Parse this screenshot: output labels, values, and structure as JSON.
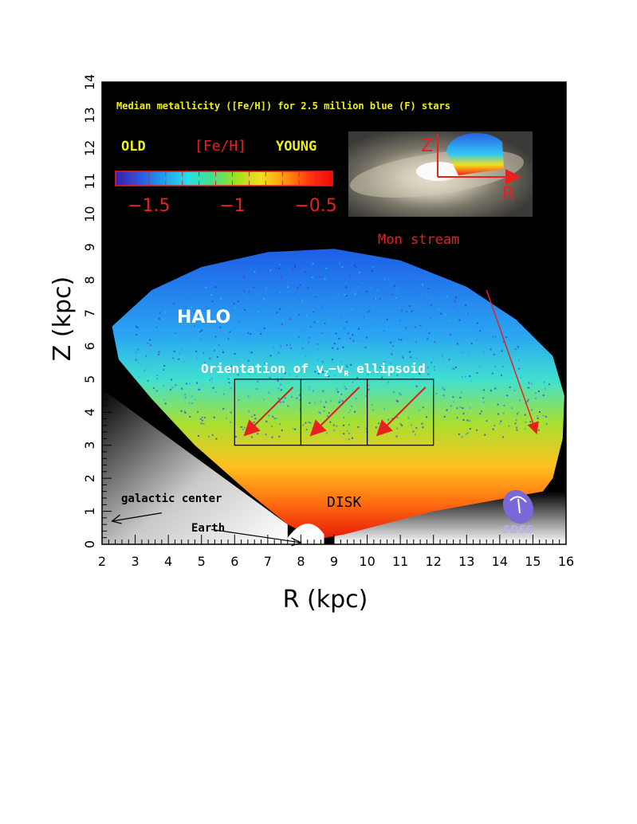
{
  "chart_data": {
    "type": "heatmap",
    "title": "Median metallicity ([Fe/H]) for 2.5 million blue (F) stars",
    "xlabel": "R (kpc)",
    "ylabel": "Z (kpc)",
    "xlim": [
      2,
      16
    ],
    "ylim": [
      0,
      14
    ],
    "x_ticks": [
      "2",
      "3",
      "4",
      "5",
      "6",
      "7",
      "8",
      "9",
      "10",
      "11",
      "12",
      "13",
      "14",
      "15",
      "16"
    ],
    "y_ticks": [
      "0",
      "1",
      "2",
      "3",
      "4",
      "5",
      "6",
      "7",
      "8",
      "9",
      "10",
      "11",
      "12",
      "13",
      "14"
    ],
    "colorbar": {
      "title": "[Fe/H]",
      "left_label": "OLD",
      "right_label": "YOUNG",
      "tick_labels": [
        "−1.5",
        "−1",
        "−0.5"
      ],
      "range": [
        -1.7,
        -0.4
      ],
      "colors": [
        "#3a1fa8",
        "#2a57e0",
        "#1fa0f0",
        "#28e0e8",
        "#46e08a",
        "#9ee020",
        "#f0e020",
        "#ff9a10",
        "#ff3a10",
        "#ee0808"
      ]
    },
    "annotations": {
      "halo": "HALO",
      "disk": "DISK",
      "mon_stream": "Mon stream",
      "galactic_center": "galactic center",
      "earth": "Earth",
      "ellipsoid_prefix": "Orientation of v",
      "ellipsoid_sub_z": "Z",
      "ellipsoid_dash": "−v",
      "ellipsoid_sub_r": "R",
      "ellipsoid_suffix": " ellipsoid",
      "inset_z": "Z",
      "inset_r": "R",
      "logo": "SDSS"
    },
    "ellipsoid_boxes": [
      {
        "r_range": [
          6,
          8
        ],
        "z_range": [
          3,
          5
        ]
      },
      {
        "r_range": [
          8,
          10
        ],
        "z_range": [
          3,
          5
        ]
      },
      {
        "r_range": [
          10,
          12
        ],
        "z_range": [
          3,
          5
        ]
      }
    ],
    "earth_position": {
      "r": 8,
      "z": 0
    }
  }
}
